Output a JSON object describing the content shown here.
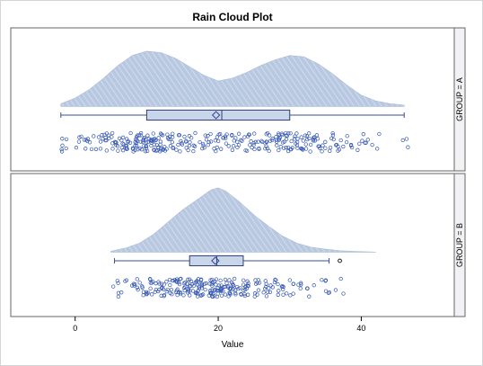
{
  "chart_data": {
    "type": "raincloud",
    "title": "Rain Cloud Plot",
    "xlabel": "Value",
    "xlim": [
      -9,
      53
    ],
    "xticks": [
      0,
      20,
      40
    ],
    "colors": {
      "cloud_fill": "#b8c8e0",
      "cloud_hatch": "#d8e2f0",
      "box_fill": "#c9d5e8",
      "box_stroke": "#2f3f6f",
      "whisker": "#3b4f9a",
      "mean_marker": "#3b4f9a",
      "points": "#3356b0",
      "outlier": "#000000",
      "panel_border": "#666666",
      "strip_fill": "#f2f2f5"
    },
    "panels": [
      {
        "label": "GROUP = A",
        "box": {
          "whisker_low": -2,
          "q1": 10,
          "median": 20.5,
          "q3": 30,
          "whisker_high": 46,
          "mean": 19.7,
          "outliers": []
        },
        "density": {
          "x": [
            -2,
            0,
            2,
            4,
            6,
            8,
            10,
            12,
            14,
            16,
            18,
            20,
            22,
            24,
            26,
            28,
            30,
            32,
            34,
            36,
            38,
            40,
            42,
            44,
            46
          ],
          "y": [
            0.002,
            0.006,
            0.012,
            0.02,
            0.029,
            0.036,
            0.039,
            0.038,
            0.034,
            0.028,
            0.022,
            0.018,
            0.02,
            0.024,
            0.029,
            0.033,
            0.036,
            0.035,
            0.03,
            0.023,
            0.015,
            0.008,
            0.004,
            0.002,
            0.001
          ]
        },
        "points": [
          -2,
          -1.5,
          0.5,
          1,
          1.8,
          2.2,
          3,
          3.5,
          4,
          4.5,
          5,
          5.2,
          5.8,
          6,
          6.3,
          6.8,
          7,
          7.2,
          7.5,
          7.8,
          8,
          8.2,
          8.5,
          8.8,
          9,
          9.2,
          9.4,
          9.6,
          9.8,
          10,
          10.2,
          10.4,
          10.6,
          10.8,
          11,
          11.2,
          11.4,
          11.6,
          11.8,
          12,
          12.3,
          12.6,
          13,
          13.3,
          13.6,
          14,
          14.4,
          14.8,
          15.2,
          15.6,
          16,
          16.5,
          17,
          17.5,
          18,
          18.5,
          19,
          19.5,
          20,
          20.5,
          21,
          21.5,
          22,
          22.5,
          23,
          23.4,
          23.8,
          24.2,
          24.6,
          25,
          25.4,
          25.8,
          26.2,
          26.6,
          27,
          27.3,
          27.6,
          27.9,
          28.2,
          28.5,
          28.8,
          29.1,
          29.4,
          29.7,
          30,
          30.3,
          30.6,
          30.9,
          31.2,
          31.5,
          31.8,
          32.1,
          32.4,
          32.8,
          33.2,
          33.6,
          34,
          34.5,
          35,
          35.5,
          36,
          36.5,
          37,
          38,
          39,
          40,
          41,
          42,
          46
        ]
      },
      {
        "label": "GROUP = B",
        "box": {
          "whisker_low": 5.5,
          "q1": 16,
          "median": 19.8,
          "q3": 23.5,
          "whisker_high": 35.5,
          "mean": 19.6,
          "outliers": [
            37
          ]
        },
        "density": {
          "x": [
            5,
            7,
            9,
            11,
            13,
            15,
            17,
            19,
            20,
            21,
            23,
            25,
            27,
            29,
            31,
            33,
            35,
            37,
            39,
            42
          ],
          "y": [
            0.001,
            0.004,
            0.009,
            0.018,
            0.03,
            0.042,
            0.052,
            0.062,
            0.064,
            0.061,
            0.05,
            0.037,
            0.026,
            0.016,
            0.009,
            0.005,
            0.003,
            0.0015,
            0.0008,
            0.0002
          ]
        },
        "points": [
          5.5,
          6,
          7.5,
          8,
          8.5,
          9,
          9.5,
          10,
          10.5,
          11,
          11.3,
          11.6,
          12,
          12.3,
          12.6,
          13,
          13.2,
          13.5,
          13.8,
          14,
          14.2,
          14.5,
          14.8,
          15,
          15.2,
          15.4,
          15.6,
          15.8,
          16,
          16.2,
          16.4,
          16.6,
          16.8,
          17,
          17.2,
          17.4,
          17.6,
          17.8,
          18,
          18.2,
          18.4,
          18.6,
          18.8,
          19,
          19.2,
          19.4,
          19.6,
          19.8,
          20,
          20.2,
          20.4,
          20.6,
          20.8,
          21,
          21.2,
          21.4,
          21.6,
          21.8,
          22,
          22.3,
          22.6,
          23,
          23.3,
          23.6,
          24,
          24.3,
          24.6,
          25,
          25.4,
          25.8,
          26.2,
          26.6,
          27,
          27.5,
          28,
          28.5,
          29,
          29.5,
          30,
          31,
          32,
          33,
          35,
          35.5,
          37
        ]
      }
    ]
  }
}
